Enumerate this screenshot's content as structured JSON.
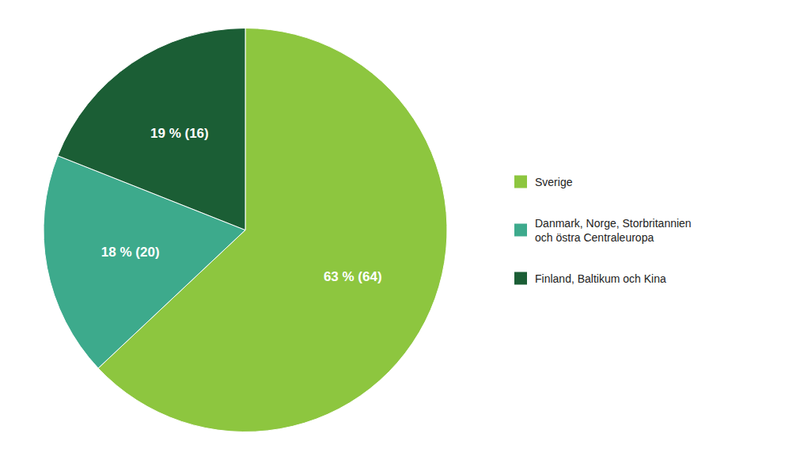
{
  "chart_data": {
    "type": "pie",
    "categories": [
      "Sverige",
      "Danmark, Norge, Storbritannien\noch östra Centraleuropa",
      "Finland, Baltikum och Kina"
    ],
    "values": [
      63,
      18,
      19
    ],
    "value_labels": [
      "63 % (64)",
      "18 % (20)",
      "19 % (16)"
    ],
    "colors": [
      "#8DC63F",
      "#3DAA8C",
      "#1B5E35"
    ],
    "data_labels": true,
    "legend": "right"
  }
}
